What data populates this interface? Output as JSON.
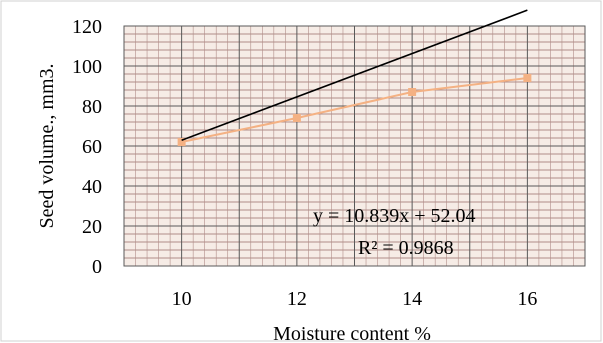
{
  "chart_data": {
    "type": "scatter",
    "title": "",
    "xlabel": "Moisture content %",
    "ylabel": "Seed volume., mm3.",
    "x_ticks": [
      10,
      12,
      14,
      16
    ],
    "y_ticks": [
      0,
      20,
      40,
      60,
      80,
      100,
      120
    ],
    "xlim": [
      9,
      17
    ],
    "ylim": [
      0,
      120
    ],
    "grid": true,
    "minor_grid": true,
    "series": [
      {
        "x": [
          10,
          12,
          14,
          16
        ],
        "y": [
          62,
          74,
          87,
          94
        ],
        "color": "#f4b183",
        "line": true
      }
    ],
    "trendline": {
      "type": "linear",
      "slope": 10.839,
      "intercept": 52.04,
      "equation": "y = 10.839x + 52.04",
      "r_squared": "R² = 0.9868",
      "color": "#000000"
    },
    "plot_background": "#f6ece6",
    "major_grid_color": "#595959",
    "minor_grid_color": "#b08d88"
  }
}
